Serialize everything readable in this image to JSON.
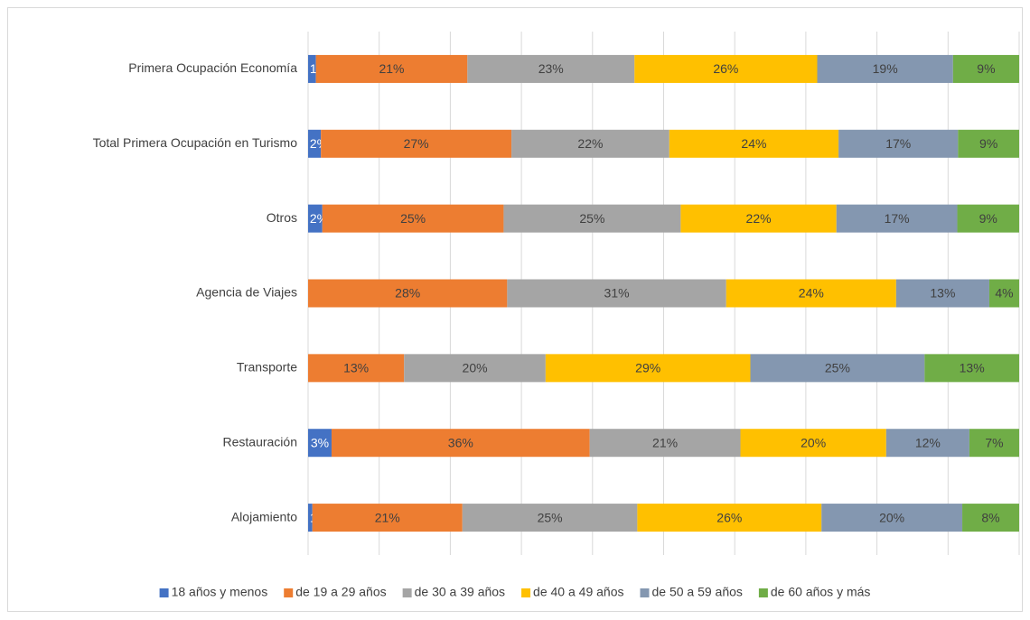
{
  "chart_data": {
    "type": "stacked_bar_horizontal",
    "categories": [
      "Primera Ocupación Economía",
      "Total Primera Ocupación en Turismo",
      "Otros",
      "Agencia de Viajes",
      "Transporte",
      "Restauración",
      "Alojamiento"
    ],
    "xlim": [
      0,
      100
    ],
    "xticks": [
      0,
      10,
      20,
      30,
      40,
      50,
      60,
      70,
      80,
      90,
      100
    ],
    "grid": true,
    "legend": "bottom",
    "series": [
      {
        "name": "18 años y menos",
        "color": "#4472c4",
        "values": [
          1.1,
          1.8,
          2.0,
          0.0,
          0.0,
          3.3,
          0.6
        ],
        "value_labels": [
          "1%",
          "2%",
          "2%",
          "0%",
          "0%",
          "3%",
          "1%"
        ]
      },
      {
        "name": "de 19 a 29 años",
        "color": "#ed7d31",
        "values": [
          21.3,
          26.8,
          25.5,
          28.0,
          13.5,
          36.3,
          21.1
        ],
        "value_labels": [
          "21%",
          "27%",
          "25%",
          "28%",
          "13%",
          "36%",
          "21%"
        ]
      },
      {
        "name": "de 30 a 39 años",
        "color": "#a5a5a5",
        "values": [
          23.5,
          22.2,
          24.9,
          30.8,
          19.9,
          21.2,
          24.6
        ],
        "value_labels": [
          "23%",
          "22%",
          "25%",
          "31%",
          "20%",
          "21%",
          "25%"
        ]
      },
      {
        "name": "de 40 a 49 años",
        "color": "#ffc000",
        "values": [
          25.7,
          23.8,
          21.9,
          23.9,
          28.8,
          20.5,
          25.9
        ],
        "value_labels": [
          "26%",
          "24%",
          "22%",
          "24%",
          "29%",
          "20%",
          "26%"
        ]
      },
      {
        "name": "de 50 a 59 años",
        "color": "#8497b0",
        "values": [
          19.1,
          16.8,
          17.0,
          13.1,
          24.5,
          11.7,
          19.8
        ],
        "value_labels": [
          "19%",
          "17%",
          "17%",
          "13%",
          "25%",
          "12%",
          "20%"
        ]
      },
      {
        "name": "de 60 años y más",
        "color": "#70ad47",
        "values": [
          9.3,
          8.6,
          8.7,
          4.2,
          13.3,
          7.0,
          8.0
        ],
        "value_labels": [
          "9%",
          "9%",
          "9%",
          "4%",
          "13%",
          "7%",
          "8%"
        ]
      }
    ]
  }
}
